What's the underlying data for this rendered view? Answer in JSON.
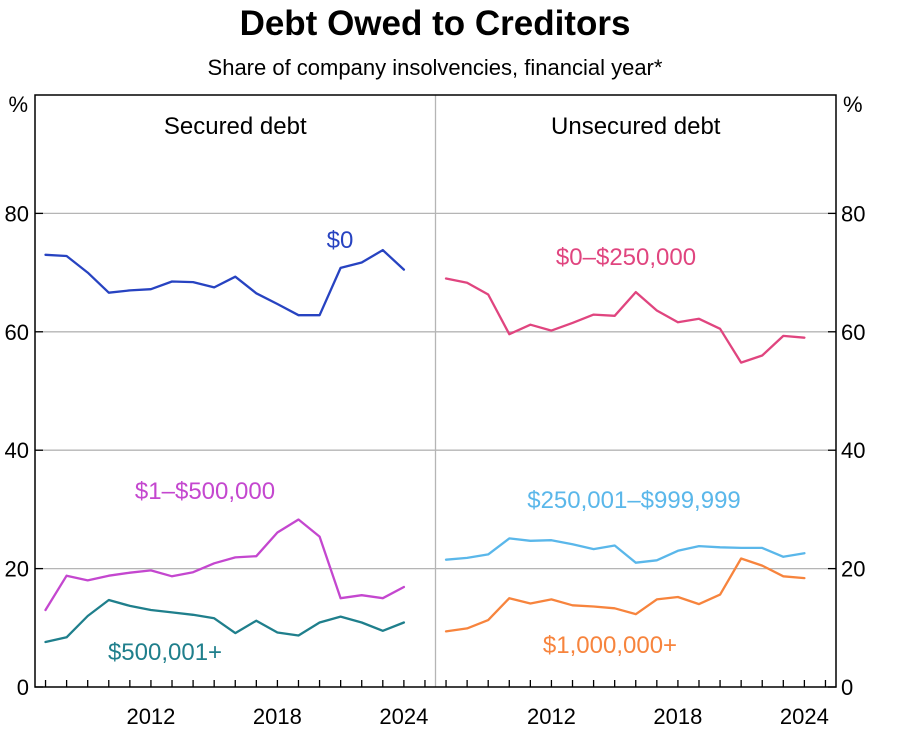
{
  "title": "Debt Owed to Creditors",
  "subtitle": "Share of company insolvencies, financial year*",
  "chart_data": {
    "type": "line",
    "y_unit_left": "%",
    "y_unit_right": "%",
    "ylim": [
      0,
      100
    ],
    "y_ticks": [
      0,
      20,
      40,
      60,
      80
    ],
    "y_tick_labels_left": [
      "0",
      "20",
      "40",
      "60",
      "80"
    ],
    "y_tick_labels_right": [
      "0",
      "20",
      "40",
      "60",
      "80"
    ],
    "xlim": [
      2006.5,
      2025.5
    ],
    "x_ticks": [
      2012,
      2018,
      2024
    ],
    "x_tick_labels": [
      "2012",
      "2018",
      "2024"
    ],
    "grid": true,
    "panels": [
      {
        "title": "Secured debt",
        "series": [
          {
            "name": "$0",
            "color": "#2743c1",
            "x": [
              2007,
              2008,
              2009,
              2010,
              2011,
              2012,
              2013,
              2014,
              2015,
              2016,
              2017,
              2018,
              2019,
              2020,
              2021,
              2022,
              2023,
              2024
            ],
            "y": [
              73.0,
              72.8,
              70.0,
              66.6,
              67.0,
              67.2,
              68.5,
              68.4,
              67.5,
              69.3,
              66.5,
              64.7,
              62.8,
              62.8,
              70.8,
              71.7,
              73.8,
              70.5
            ]
          },
          {
            "name": "$1–$500,000",
            "color": "#c447cf",
            "x": [
              2007,
              2008,
              2009,
              2010,
              2011,
              2012,
              2013,
              2014,
              2015,
              2016,
              2017,
              2018,
              2019,
              2020,
              2021,
              2022,
              2023,
              2024
            ],
            "y": [
              13.0,
              18.8,
              18.0,
              18.8,
              19.3,
              19.7,
              18.7,
              19.4,
              20.9,
              21.9,
              22.1,
              26.1,
              28.3,
              25.4,
              15.0,
              15.5,
              15.0,
              16.9
            ]
          },
          {
            "name": "$500,001+",
            "color": "#1f7f8c",
            "x": [
              2007,
              2008,
              2009,
              2010,
              2011,
              2012,
              2013,
              2014,
              2015,
              2016,
              2017,
              2018,
              2019,
              2020,
              2021,
              2022,
              2023,
              2024
            ],
            "y": [
              7.6,
              8.4,
              12.0,
              14.7,
              13.7,
              13.0,
              12.6,
              12.2,
              11.6,
              9.1,
              11.2,
              9.2,
              8.7,
              10.9,
              11.9,
              10.9,
              9.5,
              10.9
            ]
          }
        ]
      },
      {
        "title": "Unsecured debt",
        "series": [
          {
            "name": "$0–$250,000",
            "color": "#e0457f",
            "x": [
              2007,
              2008,
              2009,
              2010,
              2011,
              2012,
              2013,
              2014,
              2015,
              2016,
              2017,
              2018,
              2019,
              2020,
              2021,
              2022,
              2023,
              2024
            ],
            "y": [
              69.0,
              68.3,
              66.3,
              59.6,
              61.2,
              60.2,
              61.5,
              62.9,
              62.7,
              66.7,
              63.6,
              61.6,
              62.2,
              60.5,
              54.8,
              56.0,
              59.3,
              59.0
            ]
          },
          {
            "name": "$250,001–$999,999",
            "color": "#5ab7ea",
            "x": [
              2007,
              2008,
              2009,
              2010,
              2011,
              2012,
              2013,
              2014,
              2015,
              2016,
              2017,
              2018,
              2019,
              2020,
              2021,
              2022,
              2023,
              2024
            ],
            "y": [
              21.5,
              21.8,
              22.4,
              25.1,
              24.7,
              24.8,
              24.1,
              23.3,
              23.9,
              21.0,
              21.4,
              23.0,
              23.8,
              23.6,
              23.5,
              23.5,
              22.0,
              22.6
            ]
          },
          {
            "name": "$1,000,000+",
            "color": "#f7843d",
            "x": [
              2007,
              2008,
              2009,
              2010,
              2011,
              2012,
              2013,
              2014,
              2015,
              2016,
              2017,
              2018,
              2019,
              2020,
              2021,
              2022,
              2023,
              2024
            ],
            "y": [
              9.4,
              9.9,
              11.3,
              15.0,
              14.1,
              14.8,
              13.8,
              13.6,
              13.3,
              12.3,
              14.8,
              15.2,
              14.0,
              15.6,
              21.7,
              20.5,
              18.7,
              18.4
            ]
          }
        ]
      }
    ]
  }
}
